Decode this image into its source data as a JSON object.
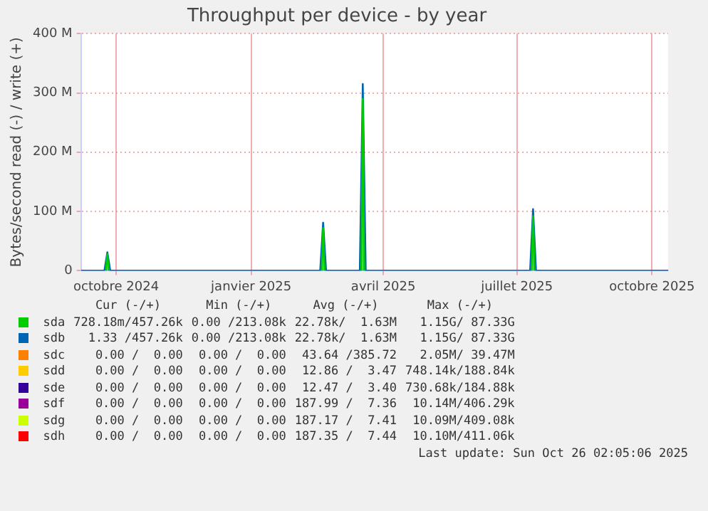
{
  "chart_data": {
    "type": "line",
    "title": "Throughput per device - by year",
    "ylabel": "Bytes/second read (-) / write (+)",
    "series": [
      {
        "name": "sda",
        "color": "#00cc00",
        "type": "area",
        "x": [
          "2024-10-08",
          "2024-10-09",
          "2024-10-10",
          "2025-02-01",
          "2025-03-04",
          "2025-03-05",
          "2025-03-06",
          "2025-03-20",
          "2025-03-31",
          "2025-04-01",
          "2025-04-02",
          "2025-06-01",
          "2025-07-25",
          "2025-07-26",
          "2025-07-27"
        ],
        "values": [
          0,
          28,
          0,
          null,
          0,
          72,
          0,
          null,
          0,
          290,
          0,
          null,
          0,
          92,
          0
        ]
      },
      {
        "name": "sdb",
        "color": "#0066b3",
        "x": [
          "2024-09-21",
          "2024-10-07",
          "2024-10-09",
          "2024-10-11",
          "2025-03-03",
          "2025-03-05",
          "2025-03-07",
          "2025-03-30",
          "2025-04-01",
          "2025-04-03",
          "2025-07-24",
          "2025-07-26",
          "2025-07-28",
          "2025-10-26"
        ],
        "values": [
          0,
          0,
          31,
          0,
          0,
          81,
          0,
          0,
          315,
          0,
          0,
          104,
          0,
          0
        ]
      },
      {
        "name": "sdc",
        "color": "#ff8000"
      },
      {
        "name": "sdd",
        "color": "#ffcc00"
      },
      {
        "name": "sde",
        "color": "#330099"
      },
      {
        "name": "sdf",
        "color": "#990099"
      },
      {
        "name": "sdg",
        "color": "#ccff00"
      },
      {
        "name": "sdh",
        "color": "#ff0000"
      }
    ],
    "xlim": [
      "2024-09-21",
      "2025-10-26"
    ],
    "xticks": [
      {
        "value": "2024-10-15",
        "label": "octobre 2024"
      },
      {
        "value": "2025-01-15",
        "label": "janvier 2025"
      },
      {
        "value": "2025-04-15",
        "label": "avril 2025"
      },
      {
        "value": "2025-07-15",
        "label": "juillet 2025"
      },
      {
        "value": "2025-10-15",
        "label": "octobre 2025"
      }
    ],
    "ylim": [
      0,
      400
    ],
    "yticks": [
      {
        "value": 0,
        "label": "0"
      },
      {
        "value": 100,
        "label": "100 M"
      },
      {
        "value": 200,
        "label": "200 M"
      },
      {
        "value": 300,
        "label": "300 M"
      },
      {
        "value": 400,
        "label": "400 M"
      }
    ],
    "grid": true,
    "legend": "bottom",
    "marker": "none",
    "line_style": "solid",
    "annotations": [
      "Cur (-/+)",
      "Min (-/+)",
      "Avg (-/+)",
      "Max (-/+)",
      "728.18m/457.26k",
      "0.00 /213.08k",
      "22.78k/  1.63M",
      "1.15G/ 87.33G",
      "1.33 /457.26k",
      "0.00 /213.08k",
      "22.78k/  1.63M",
      "1.15G/ 87.33G",
      "0.00 /  0.00",
      "0.00 /  0.00",
      "43.64 /385.72",
      "2.05M/ 39.47M",
      "0.00 /  0.00",
      "0.00 /  0.00",
      "12.86 /  3.47",
      "748.14k/188.84k",
      "0.00 /  0.00",
      "0.00 /  0.00",
      "12.47 /  3.40",
      "730.68k/184.88k",
      "0.00 /  0.00",
      "0.00 /  0.00",
      "187.99 /  7.36",
      "10.14M/406.29k",
      "0.00 /  0.00",
      "0.00 /  0.00",
      "187.17 /  7.41",
      "10.09M/409.08k",
      "0.00 /  0.00",
      "0.00 /  0.00",
      "187.35 /  7.44",
      "10.10M/411.06k",
      "Last update: Sun Oct 26 02:05:06 2025"
    ]
  }
}
